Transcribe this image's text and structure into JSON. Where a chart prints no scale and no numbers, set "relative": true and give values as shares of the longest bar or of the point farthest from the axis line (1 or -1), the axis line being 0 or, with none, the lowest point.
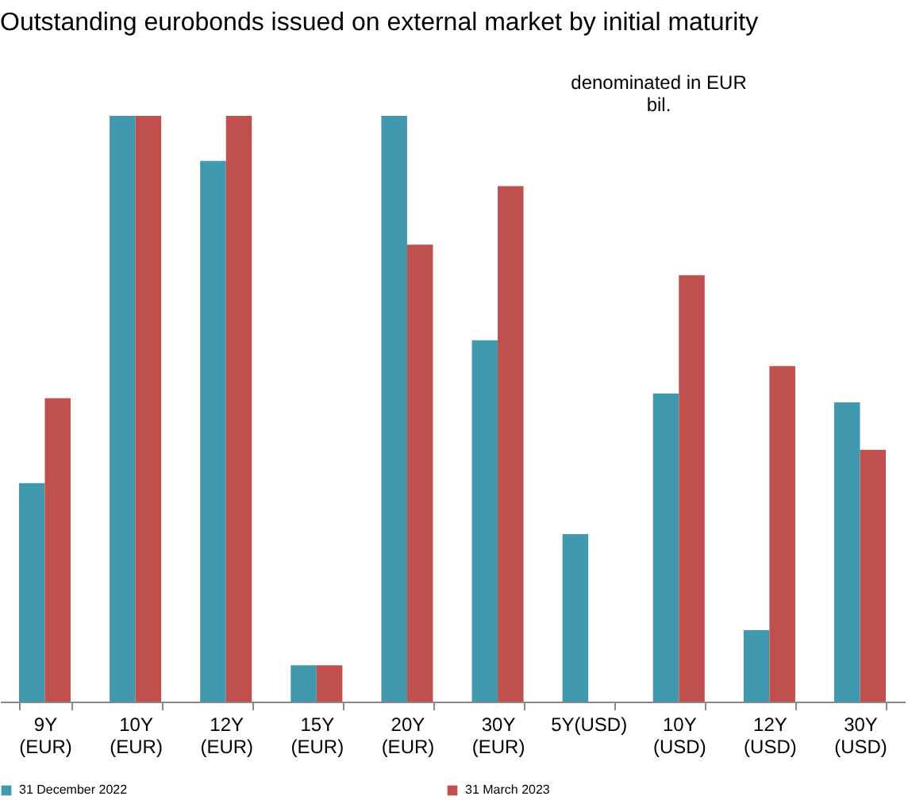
{
  "chart_data": {
    "type": "bar",
    "title": "Outstanding eurobonds issued on external market by initial maturity",
    "annotations": [
      "denominated in EUR\nbil."
    ],
    "categories": [
      "9Y (EUR)",
      "10Y (EUR)",
      "12Y (EUR)",
      "15Y (EUR)",
      "20Y (EUR)",
      "30Y (EUR)",
      "5Y(USD)",
      "10Y (USD)",
      "12Y (USD)",
      "30Y (USD)"
    ],
    "relative": true,
    "series": [
      {
        "name": "31 December 2022",
        "color": "#4199b0",
        "values": [
          0.373,
          1,
          0.923,
          0.062,
          1,
          0.617,
          0.286,
          0.526,
          0.122,
          0.511
        ]
      },
      {
        "name": "31 March 2023",
        "color": "#c0504d",
        "values": [
          0.518,
          1,
          1,
          0.062,
          0.78,
          0.88,
          null,
          0.728,
          0.573,
          0.43
        ]
      }
    ],
    "legend": "bottom",
    "grid": false
  }
}
